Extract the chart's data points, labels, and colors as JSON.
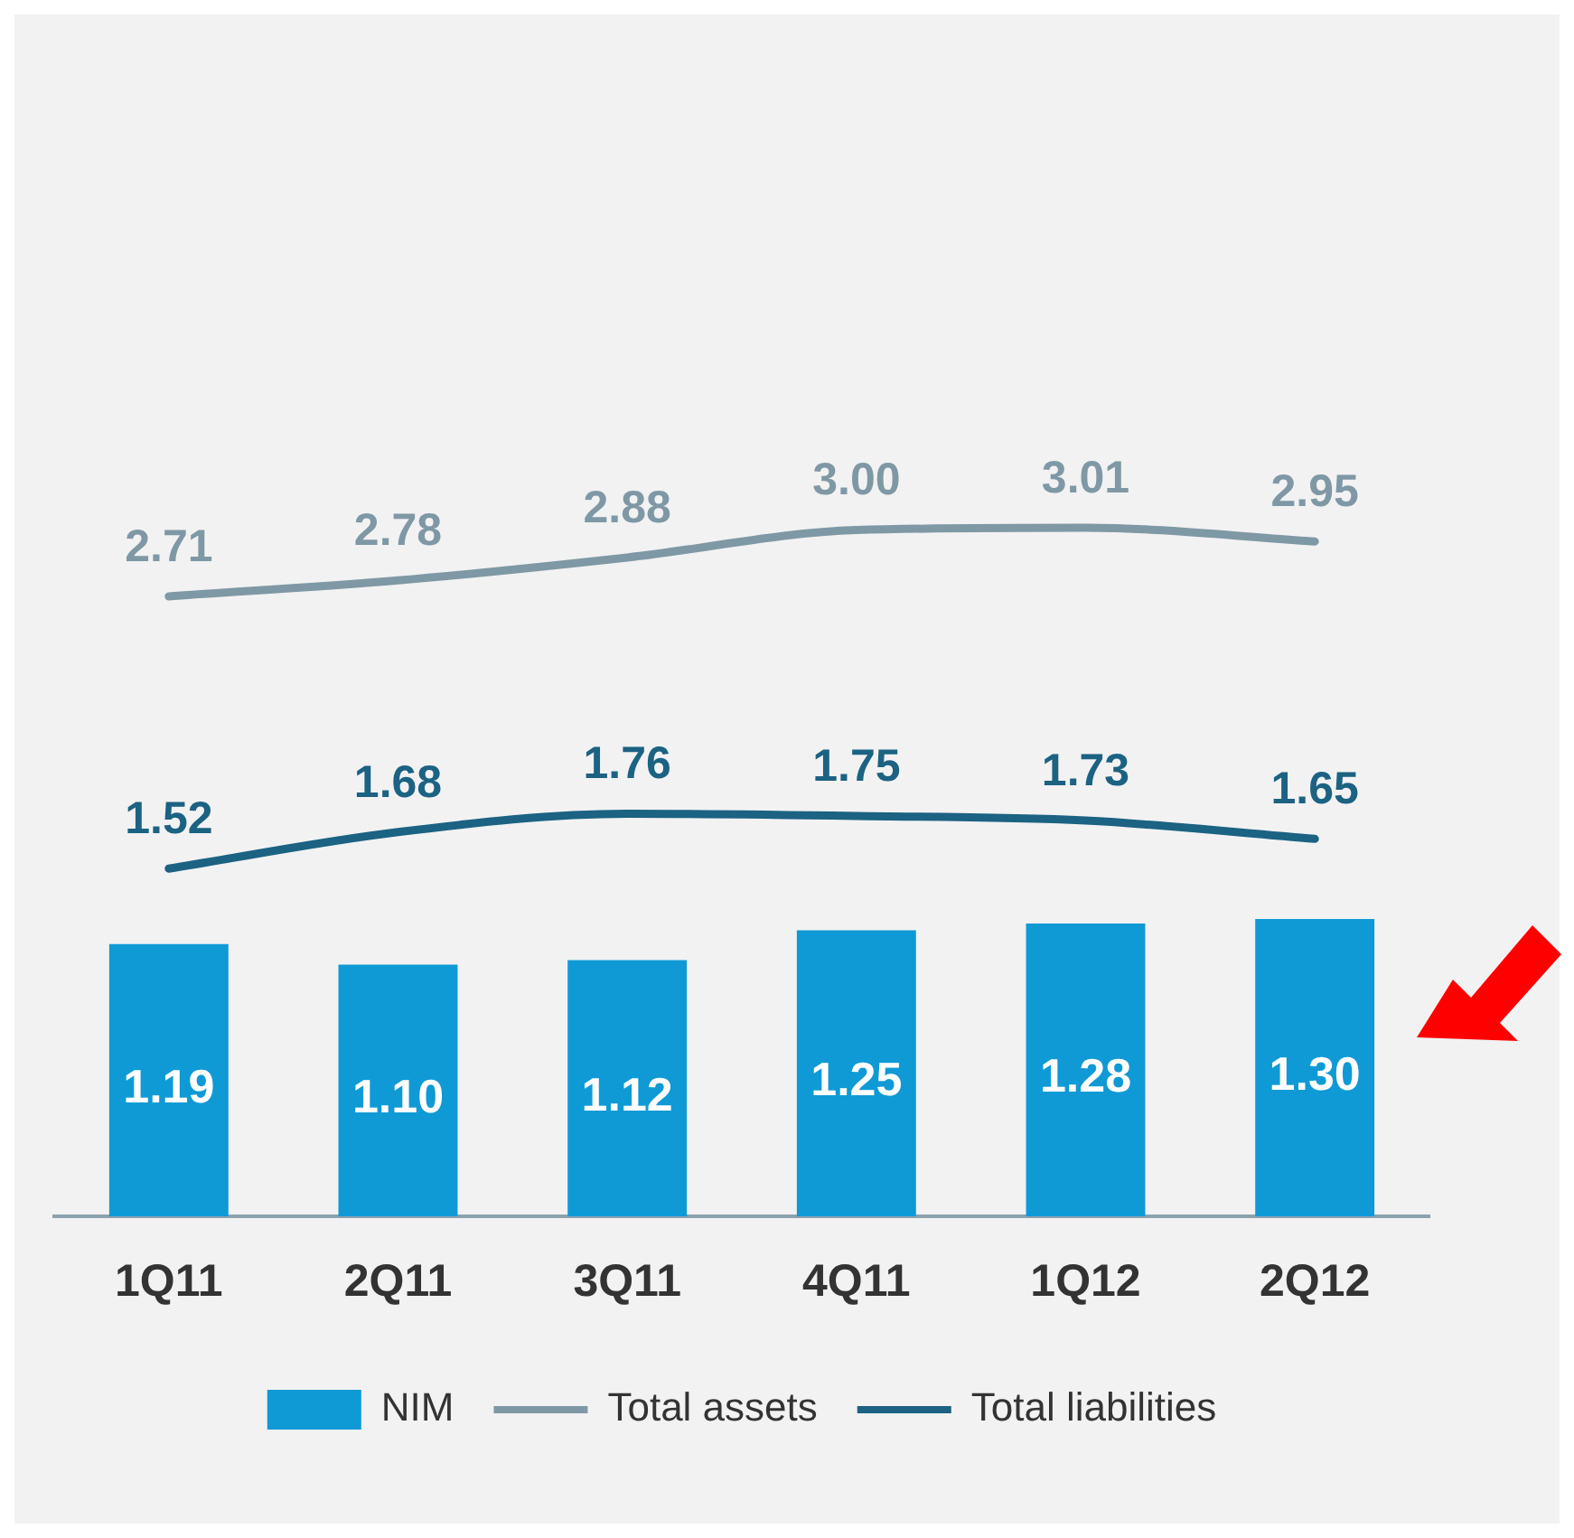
{
  "chart_data": {
    "type": "bar",
    "categories": [
      "1Q11",
      "2Q11",
      "3Q11",
      "4Q11",
      "1Q12",
      "2Q12"
    ],
    "series": [
      {
        "name": "NIM",
        "color": "#0f9ad6",
        "values": [
          1.19,
          1.1,
          1.12,
          1.25,
          1.28,
          1.3
        ],
        "value_labels": [
          "1.19",
          "1.10",
          "1.12",
          "1.25",
          "1.28",
          "1.30"
        ]
      },
      {
        "name": "Total assets",
        "type": "line",
        "color": "#7f98a5",
        "values": [
          2.71,
          2.78,
          2.88,
          3.0,
          3.01,
          2.95
        ],
        "value_labels": [
          "2.71",
          "2.78",
          "2.88",
          "3.00",
          "3.01",
          "2.95"
        ]
      },
      {
        "name": "Total liabilities",
        "type": "line",
        "color": "#1b6283",
        "values": [
          1.52,
          1.68,
          1.76,
          1.75,
          1.73,
          1.65
        ],
        "value_labels": [
          "1.52",
          "1.68",
          "1.76",
          "1.75",
          "1.73",
          "1.65"
        ]
      }
    ],
    "tick_labels": "x",
    "grid": false,
    "legend": "bottom",
    "marker": "none"
  }
}
